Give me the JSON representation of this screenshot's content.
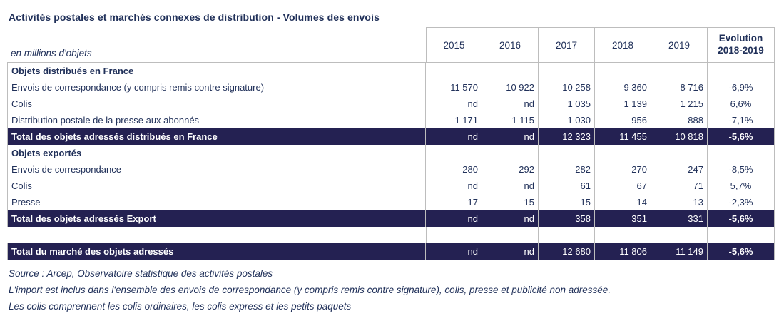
{
  "page": {
    "title": "Activités postales et marchés connexes de distribution  - Volumes des envois",
    "unit_label": "en millions d'objets"
  },
  "header": {
    "years": [
      "2015",
      "2016",
      "2017",
      "2018",
      "2019"
    ],
    "evolution_line1": "Evolution",
    "evolution_line2": "2018-2019"
  },
  "rows": [
    {
      "type": "section",
      "label": "Objets distribués en France",
      "values": [
        "",
        "",
        "",
        "",
        ""
      ],
      "evolution": ""
    },
    {
      "type": "data",
      "label": "Envois de correspondance (y compris remis contre signature)",
      "values": [
        "11 570",
        "10 922",
        "10 258",
        "9 360",
        "8 716"
      ],
      "evolution": "-6,9%"
    },
    {
      "type": "data",
      "label": "Colis",
      "values": [
        "nd",
        "nd",
        "1 035",
        "1 139",
        "1 215"
      ],
      "evolution": "6,6%"
    },
    {
      "type": "data",
      "label": "Distribution postale de la presse aux abonnés",
      "values": [
        "1 171",
        "1 115",
        "1 030",
        "956",
        "888"
      ],
      "evolution": "-7,1%"
    },
    {
      "type": "total",
      "label": "Total des objets adressés distribués en France",
      "values": [
        "nd",
        "nd",
        "12 323",
        "11 455",
        "10 818"
      ],
      "evolution": "-5,6%"
    },
    {
      "type": "section",
      "label": "Objets exportés",
      "values": [
        "",
        "",
        "",
        "",
        ""
      ],
      "evolution": ""
    },
    {
      "type": "data",
      "label": "Envois de correspondance",
      "values": [
        "280",
        "292",
        "282",
        "270",
        "247"
      ],
      "evolution": "-8,5%"
    },
    {
      "type": "data",
      "label": "Colis",
      "values": [
        "nd",
        "nd",
        "61",
        "67",
        "71"
      ],
      "evolution": "5,7%"
    },
    {
      "type": "data",
      "label": "Presse",
      "values": [
        "17",
        "15",
        "15",
        "14",
        "13"
      ],
      "evolution": "-2,3%"
    },
    {
      "type": "total",
      "label": "Total des objets adressés Export",
      "values": [
        "nd",
        "nd",
        "358",
        "351",
        "331"
      ],
      "evolution": "-5,6%"
    },
    {
      "type": "spacer",
      "label": "",
      "values": [
        "",
        "",
        "",
        "",
        ""
      ],
      "evolution": ""
    },
    {
      "type": "total",
      "label": "Total du marché des objets adressés",
      "values": [
        "nd",
        "nd",
        "12 680",
        "11 806",
        "11 149"
      ],
      "evolution": "-5,6%"
    }
  ],
  "footnotes": [
    "Source : Arcep, Observatoire statistique des activités postales",
    "L'import est inclus dans l'ensemble des envois de correspondance (y compris remis contre signature), colis, presse et publicité non adressée.",
    "Les colis comprennent les colis ordinaires, les colis express et les petits paquets"
  ],
  "colors": {
    "navy_bg": "#242152",
    "ink": "#21315A",
    "border": "#BDBDBD"
  }
}
